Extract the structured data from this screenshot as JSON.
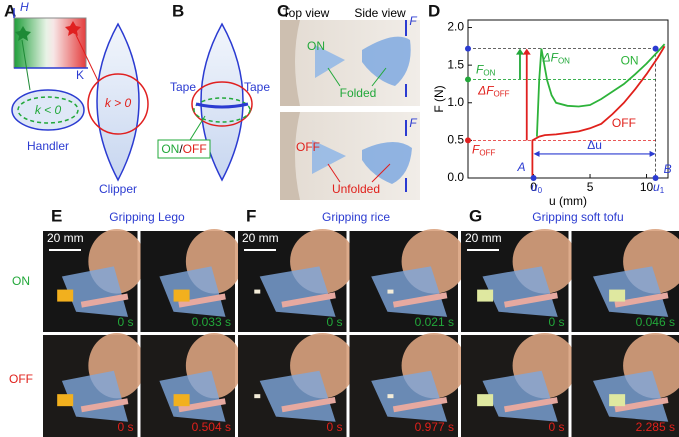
{
  "panel_a": {
    "label": "A",
    "axis_h": "H",
    "axis_k": "K",
    "handler_k": "k < 0",
    "handler": "Handler",
    "clipper_k": "k > 0",
    "clipper": "Clipper"
  },
  "panel_b": {
    "label": "B",
    "tape_left": "Tape",
    "tape_right": "Tape",
    "switch_on": "ON",
    "switch_slash": "/",
    "switch_off": "OFF"
  },
  "panel_c": {
    "label": "C",
    "top_view": "Top view",
    "side_view": "Side view",
    "on": "ON",
    "off": "OFF",
    "folded": "Folded",
    "unfolded": "Unfolded",
    "force_top": "F",
    "force_bottom": "F"
  },
  "chart_data": {
    "type": "line",
    "label": "D",
    "xlabel": "u (mm)",
    "ylabel": "F (N)",
    "xlim": [
      -5.8,
      11.9
    ],
    "ylim": [
      0,
      2.1
    ],
    "xticks": [
      0,
      5,
      10
    ],
    "yticks": [
      {
        "value": 0,
        "label": "0.0"
      },
      {
        "value": 0.5,
        "label": "0.5"
      },
      {
        "value": 1,
        "label": "1.0"
      },
      {
        "value": 1.5,
        "label": "1.5"
      },
      {
        "value": 2,
        "label": "2.0"
      }
    ],
    "series": [
      {
        "name": "ON",
        "color": "#2db33a",
        "x": [
          0.3,
          0.5,
          0.7,
          0.9,
          1.2,
          1.6,
          2,
          3,
          4,
          5,
          6,
          7,
          8,
          9,
          10,
          11,
          11.6
        ],
        "values": [
          0.55,
          1.3,
          1.72,
          1.55,
          1.3,
          1.1,
          1.0,
          0.96,
          0.95,
          0.97,
          1.05,
          1.15,
          1.25,
          1.38,
          1.52,
          1.68,
          1.78
        ]
      },
      {
        "name": "OFF",
        "color": "#e0201b",
        "x": [
          -0.1,
          -0.1,
          0.5,
          1,
          2,
          3,
          4,
          5,
          6,
          7,
          8,
          9,
          10,
          11,
          11.6
        ],
        "values": [
          0,
          0.5,
          0.55,
          0.57,
          0.58,
          0.6,
          0.62,
          0.66,
          0.72,
          0.85,
          1.0,
          1.18,
          1.38,
          1.6,
          1.75
        ]
      }
    ],
    "markers": {
      "f_peak": 1.72,
      "f_on": 1.31,
      "f_off": 0.5,
      "u0": 0,
      "u1": 10.8,
      "du_level": 0.32
    },
    "annotations": {
      "f_on": {
        "main": "F",
        "sub": "ON"
      },
      "f_off": {
        "main": "F",
        "sub": "OFF"
      },
      "df_on": {
        "main": "ΔF",
        "sub": "ON"
      },
      "df_off": {
        "main": "ΔF",
        "sub": "OFF"
      },
      "u0": {
        "main": "u",
        "sub": "0"
      },
      "u1": {
        "main": "u",
        "sub": "1"
      },
      "point_a": "A",
      "point_b": "B",
      "du": "Δu"
    }
  },
  "row_labels": {
    "on": "ON",
    "off": "OFF"
  },
  "gripping": [
    {
      "label": "E",
      "title": "Gripping Lego",
      "scale": "20 mm",
      "on_times": [
        "0 s",
        "0.033 s"
      ],
      "off_times": [
        "0 s",
        "0.504 s"
      ]
    },
    {
      "label": "F",
      "title": "Gripping rice",
      "scale": "20 mm",
      "on_times": [
        "0 s",
        "0.021 s"
      ],
      "off_times": [
        "0 s",
        "0.977 s"
      ]
    },
    {
      "label": "G",
      "title": "Gripping soft tofu",
      "scale": "20 mm",
      "on_times": [
        "0 s",
        "0.046 s"
      ],
      "off_times": [
        "0 s",
        "2.285 s"
      ]
    }
  ]
}
